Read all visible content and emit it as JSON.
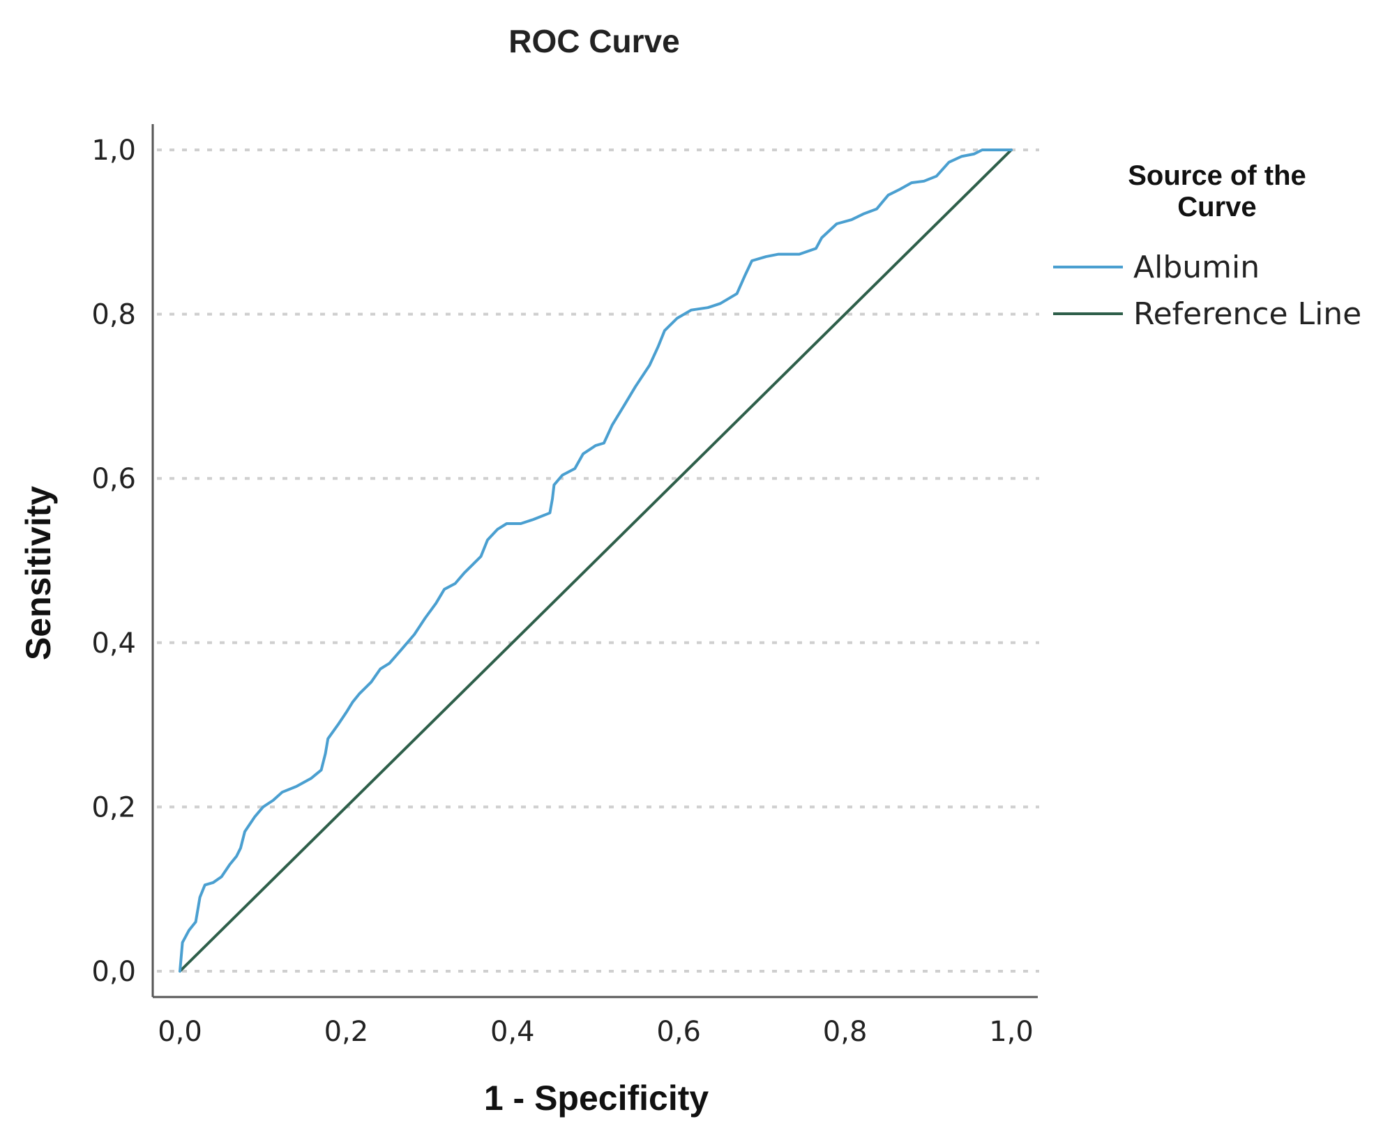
{
  "chart_data": {
    "type": "line",
    "title": "ROC Curve",
    "xlabel": "1 - Specificity",
    "ylabel": "Sensitivity",
    "xlim": [
      0,
      1
    ],
    "ylim": [
      0,
      1
    ],
    "x_ticks": [
      "0,0",
      "0,2",
      "0,4",
      "0,6",
      "0,8",
      "1,0"
    ],
    "y_ticks": [
      "0,0",
      "0,2",
      "0,4",
      "0,6",
      "0,8",
      "1,0"
    ],
    "grid": "horizontal dotted",
    "legend": {
      "title": "Source of the Curve",
      "placement": "right"
    },
    "series": [
      {
        "name": "Albumin",
        "color": "#4a9fd0",
        "points": [
          [
            0.0,
            0.0
          ],
          [
            0.003,
            0.035
          ],
          [
            0.011,
            0.05
          ],
          [
            0.019,
            0.06
          ],
          [
            0.024,
            0.09
          ],
          [
            0.03,
            0.105
          ],
          [
            0.04,
            0.108
          ],
          [
            0.05,
            0.115
          ],
          [
            0.06,
            0.13
          ],
          [
            0.068,
            0.14
          ],
          [
            0.073,
            0.15
          ],
          [
            0.078,
            0.17
          ],
          [
            0.09,
            0.188
          ],
          [
            0.1,
            0.2
          ],
          [
            0.112,
            0.208
          ],
          [
            0.123,
            0.218
          ],
          [
            0.14,
            0.225
          ],
          [
            0.158,
            0.235
          ],
          [
            0.17,
            0.245
          ],
          [
            0.175,
            0.265
          ],
          [
            0.178,
            0.283
          ],
          [
            0.19,
            0.3
          ],
          [
            0.2,
            0.315
          ],
          [
            0.208,
            0.328
          ],
          [
            0.216,
            0.338
          ],
          [
            0.23,
            0.352
          ],
          [
            0.241,
            0.368
          ],
          [
            0.252,
            0.375
          ],
          [
            0.265,
            0.39
          ],
          [
            0.282,
            0.41
          ],
          [
            0.295,
            0.43
          ],
          [
            0.308,
            0.448
          ],
          [
            0.318,
            0.465
          ],
          [
            0.331,
            0.472
          ],
          [
            0.342,
            0.485
          ],
          [
            0.352,
            0.495
          ],
          [
            0.362,
            0.505
          ],
          [
            0.37,
            0.525
          ],
          [
            0.382,
            0.538
          ],
          [
            0.393,
            0.545
          ],
          [
            0.41,
            0.545
          ],
          [
            0.425,
            0.55
          ],
          [
            0.445,
            0.558
          ],
          [
            0.448,
            0.575
          ],
          [
            0.45,
            0.592
          ],
          [
            0.46,
            0.604
          ],
          [
            0.475,
            0.612
          ],
          [
            0.485,
            0.63
          ],
          [
            0.5,
            0.64
          ],
          [
            0.51,
            0.643
          ],
          [
            0.52,
            0.665
          ],
          [
            0.535,
            0.69
          ],
          [
            0.548,
            0.712
          ],
          [
            0.565,
            0.738
          ],
          [
            0.575,
            0.76
          ],
          [
            0.583,
            0.78
          ],
          [
            0.598,
            0.795
          ],
          [
            0.615,
            0.805
          ],
          [
            0.635,
            0.808
          ],
          [
            0.65,
            0.813
          ],
          [
            0.67,
            0.825
          ],
          [
            0.68,
            0.848
          ],
          [
            0.688,
            0.865
          ],
          [
            0.705,
            0.87
          ],
          [
            0.72,
            0.873
          ],
          [
            0.745,
            0.873
          ],
          [
            0.765,
            0.88
          ],
          [
            0.772,
            0.893
          ],
          [
            0.79,
            0.91
          ],
          [
            0.808,
            0.915
          ],
          [
            0.822,
            0.922
          ],
          [
            0.838,
            0.928
          ],
          [
            0.852,
            0.945
          ],
          [
            0.866,
            0.952
          ],
          [
            0.88,
            0.96
          ],
          [
            0.895,
            0.962
          ],
          [
            0.91,
            0.968
          ],
          [
            0.925,
            0.985
          ],
          [
            0.94,
            0.992
          ],
          [
            0.955,
            0.995
          ],
          [
            0.965,
            1.0
          ],
          [
            1.0,
            1.0
          ]
        ]
      },
      {
        "name": "Reference Line",
        "color": "#2e5f4a",
        "points": [
          [
            0,
            0
          ],
          [
            1,
            1
          ]
        ]
      }
    ]
  }
}
